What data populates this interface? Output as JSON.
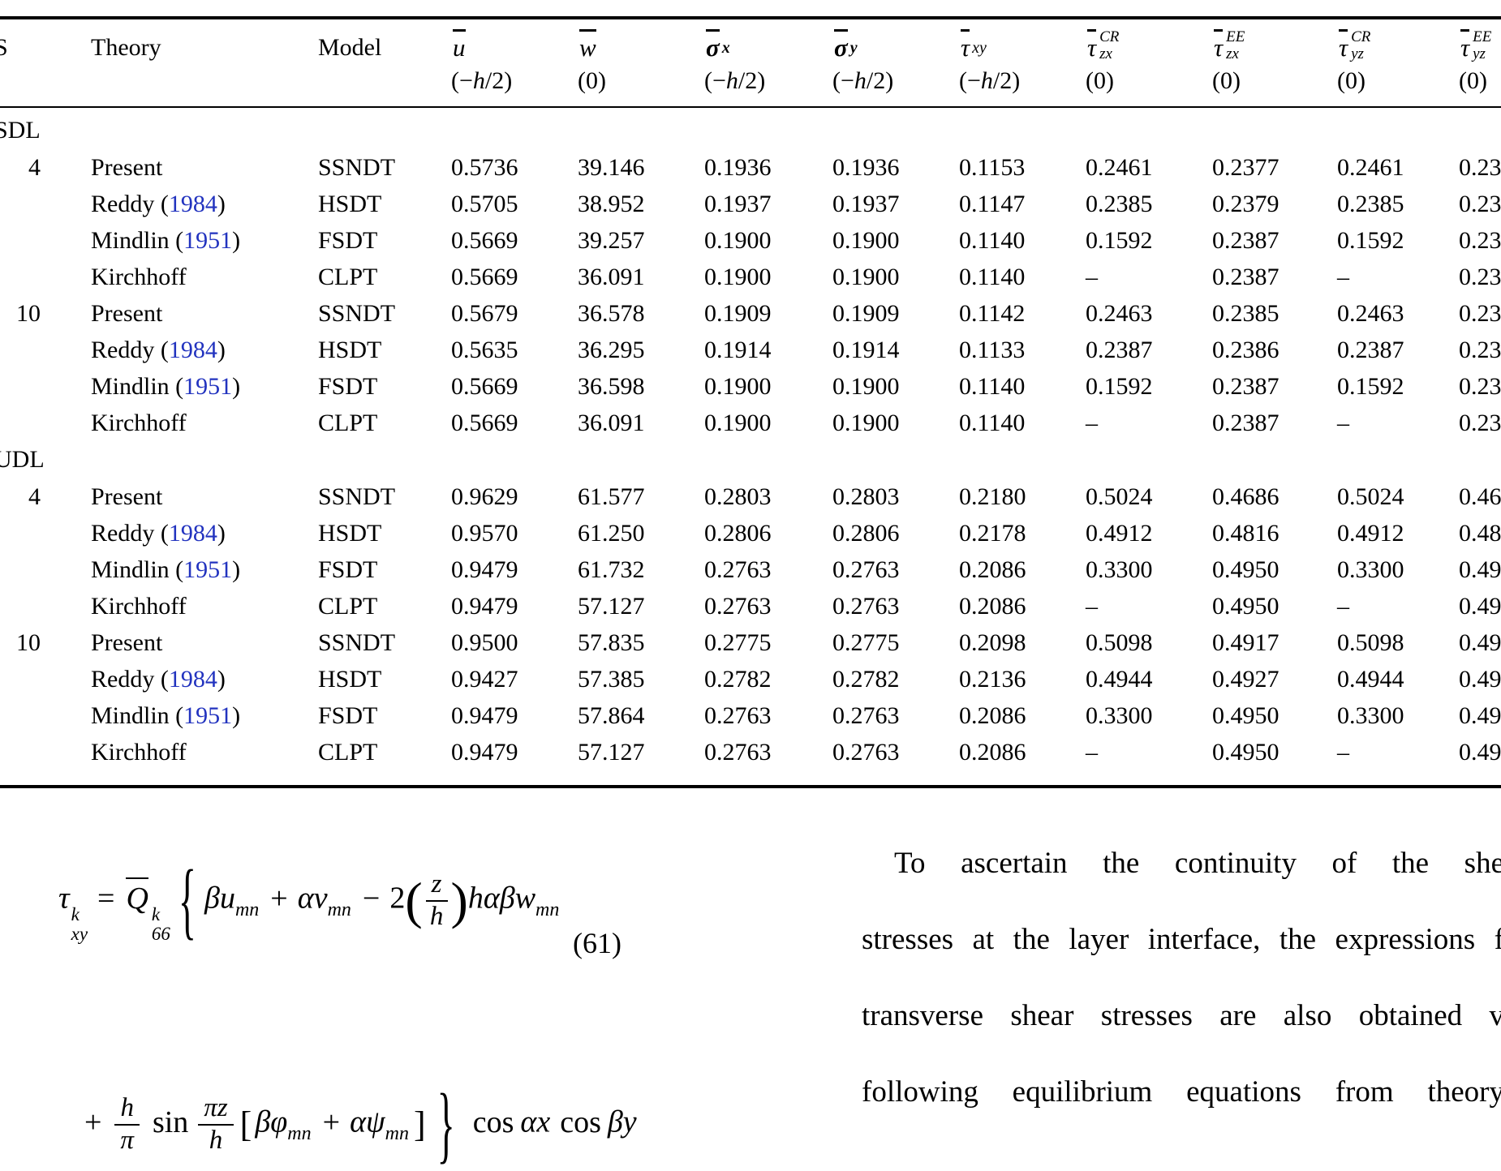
{
  "meta": {
    "background": "#ffffff",
    "text_color": "#000000",
    "link_color": "#2233bf"
  },
  "table": {
    "columns": [
      {
        "label": "S"
      },
      {
        "label": "Theory"
      },
      {
        "label": "Model"
      },
      {
        "sym": "u",
        "bar": true,
        "loc": "(−h/2)"
      },
      {
        "sym": "w",
        "bar": true,
        "loc": "(0)"
      },
      {
        "sym": "σ",
        "bold": true,
        "bar": true,
        "sub": "x",
        "loc": "(−h/2)"
      },
      {
        "sym": "σ",
        "bold": true,
        "bar": true,
        "sub": "y",
        "loc": "(−h/2)"
      },
      {
        "sym": "τ",
        "bar": true,
        "sub": "xy",
        "loc": "(−h/2)"
      },
      {
        "sym": "τ",
        "bar": true,
        "sub": "zx",
        "sup": "CR",
        "loc": "(0)"
      },
      {
        "sym": "τ",
        "bar": true,
        "sub": "zx",
        "sup": "EE",
        "loc": "(0)"
      },
      {
        "sym": "τ",
        "bar": true,
        "sub": "yz",
        "sup": "CR",
        "loc": "(0)"
      },
      {
        "sym": "τ",
        "bar": true,
        "sub": "yz",
        "sup": "EE",
        "loc": "(0)"
      }
    ],
    "sections": [
      {
        "label": "SDL",
        "groups": [
          {
            "s": "4",
            "rows": [
              {
                "theory": "Present",
                "model": "SSNDT",
                "values": [
                  "0.5736",
                  "39.146",
                  "0.1936",
                  "0.1936",
                  "0.1153",
                  "0.2461",
                  "0.2377",
                  "0.2461",
                  "0.23"
                ]
              },
              {
                "theory": "Reddy",
                "year": "1984",
                "model": "HSDT",
                "values": [
                  "0.5705",
                  "38.952",
                  "0.1937",
                  "0.1937",
                  "0.1147",
                  "0.2385",
                  "0.2379",
                  "0.2385",
                  "0.23"
                ]
              },
              {
                "theory": "Mindlin",
                "year": "1951",
                "model": "FSDT",
                "values": [
                  "0.5669",
                  "39.257",
                  "0.1900",
                  "0.1900",
                  "0.1140",
                  "0.1592",
                  "0.2387",
                  "0.1592",
                  "0.23"
                ]
              },
              {
                "theory": "Kirchhoff",
                "model": "CLPT",
                "values": [
                  "0.5669",
                  "36.091",
                  "0.1900",
                  "0.1900",
                  "0.1140",
                  "–",
                  "0.2387",
                  "–",
                  "0.23"
                ]
              }
            ]
          },
          {
            "s": "10",
            "rows": [
              {
                "theory": "Present",
                "model": "SSNDT",
                "values": [
                  "0.5679",
                  "36.578",
                  "0.1909",
                  "0.1909",
                  "0.1142",
                  "0.2463",
                  "0.2385",
                  "0.2463",
                  "0.23"
                ]
              },
              {
                "theory": "Reddy",
                "year": "1984",
                "model": "HSDT",
                "values": [
                  "0.5635",
                  "36.295",
                  "0.1914",
                  "0.1914",
                  "0.1133",
                  "0.2387",
                  "0.2386",
                  "0.2387",
                  "0.23"
                ]
              },
              {
                "theory": "Mindlin",
                "year": "1951",
                "model": "FSDT",
                "values": [
                  "0.5669",
                  "36.598",
                  "0.1900",
                  "0.1900",
                  "0.1140",
                  "0.1592",
                  "0.2387",
                  "0.1592",
                  "0.23"
                ]
              },
              {
                "theory": "Kirchhoff",
                "model": "CLPT",
                "values": [
                  "0.5669",
                  "36.091",
                  "0.1900",
                  "0.1900",
                  "0.1140",
                  "–",
                  "0.2387",
                  "–",
                  "0.23"
                ]
              }
            ]
          }
        ]
      },
      {
        "label": "UDL",
        "groups": [
          {
            "s": "4",
            "rows": [
              {
                "theory": "Present",
                "model": "SSNDT",
                "values": [
                  "0.9629",
                  "61.577",
                  "0.2803",
                  "0.2803",
                  "0.2180",
                  "0.5024",
                  "0.4686",
                  "0.5024",
                  "0.46"
                ]
              },
              {
                "theory": "Reddy",
                "year": "1984",
                "model": "HSDT",
                "values": [
                  "0.9570",
                  "61.250",
                  "0.2806",
                  "0.2806",
                  "0.2178",
                  "0.4912",
                  "0.4816",
                  "0.4912",
                  "0.48"
                ]
              },
              {
                "theory": "Mindlin",
                "year": "1951",
                "model": "FSDT",
                "values": [
                  "0.9479",
                  "61.732",
                  "0.2763",
                  "0.2763",
                  "0.2086",
                  "0.3300",
                  "0.4950",
                  "0.3300",
                  "0.49"
                ]
              },
              {
                "theory": "Kirchhoff",
                "model": "CLPT",
                "values": [
                  "0.9479",
                  "57.127",
                  "0.2763",
                  "0.2763",
                  "0.2086",
                  "–",
                  "0.4950",
                  "–",
                  "0.49"
                ]
              }
            ]
          },
          {
            "s": "10",
            "rows": [
              {
                "theory": "Present",
                "model": "SSNDT",
                "values": [
                  "0.9500",
                  "57.835",
                  "0.2775",
                  "0.2775",
                  "0.2098",
                  "0.5098",
                  "0.4917",
                  "0.5098",
                  "0.49"
                ]
              },
              {
                "theory": "Reddy",
                "year": "1984",
                "model": "HSDT",
                "values": [
                  "0.9427",
                  "57.385",
                  "0.2782",
                  "0.2782",
                  "0.2136",
                  "0.4944",
                  "0.4927",
                  "0.4944",
                  "0.49"
                ]
              },
              {
                "theory": "Mindlin",
                "year": "1951",
                "model": "FSDT",
                "values": [
                  "0.9479",
                  "57.864",
                  "0.2763",
                  "0.2763",
                  "0.2086",
                  "0.3300",
                  "0.4950",
                  "0.3300",
                  "0.49"
                ]
              },
              {
                "theory": "Kirchhoff",
                "model": "CLPT",
                "values": [
                  "0.9479",
                  "57.127",
                  "0.2763",
                  "0.2763",
                  "0.2086",
                  "–",
                  "0.4950",
                  "–",
                  "0.49"
                ]
              }
            ]
          }
        ]
      }
    ]
  },
  "equation": {
    "number": "(61)",
    "line1": [
      {
        "k": "sym",
        "t": "τ",
        "sup": "k",
        "sub": "xy"
      },
      {
        "k": "op",
        "t": "="
      },
      {
        "k": "sym",
        "t": "Q",
        "bar": true,
        "sup": "k",
        "sub": "66"
      },
      {
        "k": "brace",
        "t": "{"
      },
      {
        "k": "sym",
        "t": "β"
      },
      {
        "k": "sym",
        "t": "u",
        "sub": "mn"
      },
      {
        "k": "op",
        "t": "+"
      },
      {
        "k": "sym",
        "t": "α"
      },
      {
        "k": "sym",
        "t": "v",
        "sub": "mn"
      },
      {
        "k": "op",
        "t": "−"
      },
      {
        "k": "num",
        "t": "2"
      },
      {
        "k": "frac",
        "n": "z",
        "d": "h",
        "parens": true
      },
      {
        "k": "sym",
        "t": "hαβ"
      },
      {
        "k": "sym",
        "t": "w",
        "sub": "mn"
      }
    ],
    "line2": [
      {
        "k": "op",
        "t": "+"
      },
      {
        "k": "frac",
        "n": "h",
        "d": "π"
      },
      {
        "k": "fn",
        "t": "sin"
      },
      {
        "k": "frac",
        "n": "πz",
        "d": "h"
      },
      {
        "k": "bracket",
        "t": "["
      },
      {
        "k": "sym",
        "t": "β"
      },
      {
        "k": "sym",
        "t": "φ",
        "sub": "mn"
      },
      {
        "k": "op",
        "t": "+"
      },
      {
        "k": "sym",
        "t": "α"
      },
      {
        "k": "sym",
        "t": "ψ",
        "sub": "mn"
      },
      {
        "k": "bracket",
        "t": "]"
      },
      {
        "k": "brace",
        "t": "}"
      },
      {
        "k": "fn",
        "t": "cos"
      },
      {
        "k": "sym",
        "t": "αx"
      },
      {
        "k": "fn",
        "t": "cos"
      },
      {
        "k": "sym",
        "t": "βy"
      }
    ]
  },
  "right_column": {
    "lines": [
      "To ascertain the continuity of the she",
      "stresses at the layer interface, the expressions f",
      "transverse shear stresses are also obtained v",
      "following equilibrium equations from theory"
    ]
  }
}
